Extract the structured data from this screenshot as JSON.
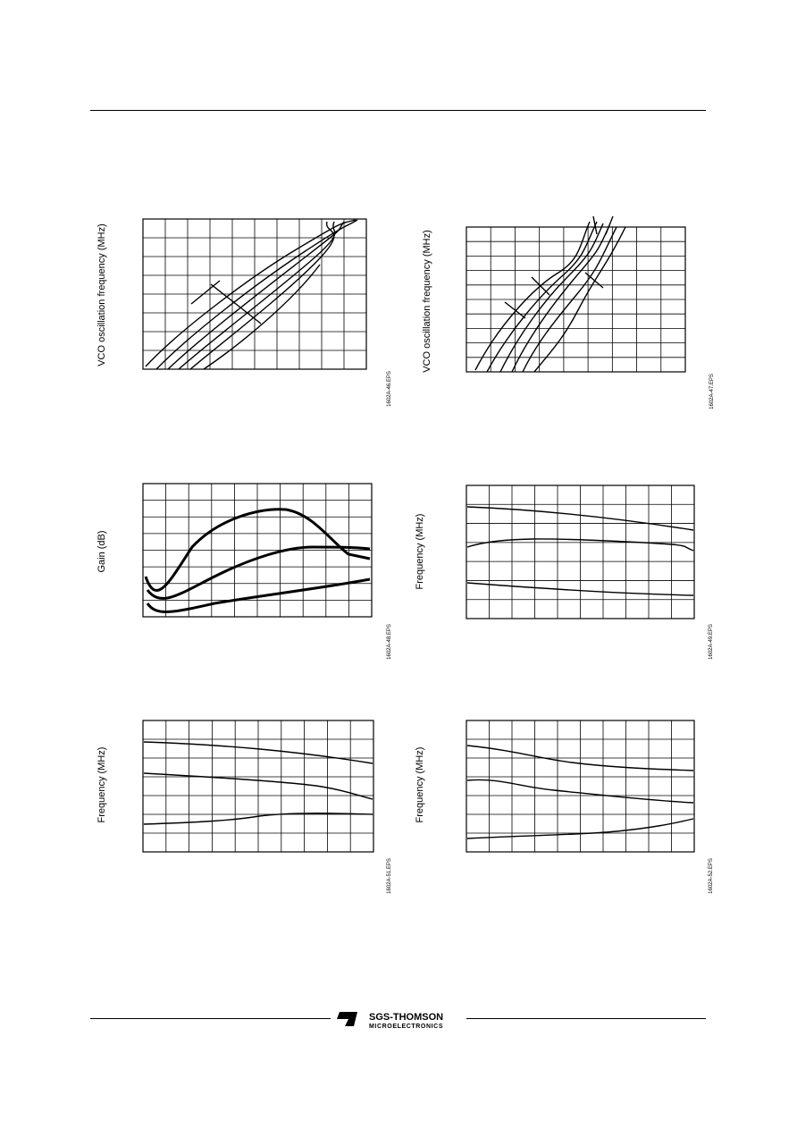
{
  "charts": [
    {
      "y_label": "VCO oscillation frequency (MHz)",
      "code": "1602A-46.EPS"
    },
    {
      "y_label": "VCO oscillation frequency (MHz)",
      "code": "1602A-47.EPS"
    },
    {
      "y_label": "Gain (dB)",
      "code": "1602A-48.EPS"
    },
    {
      "y_label": "Frequency (MHz)",
      "code": "1602A-49.EPS"
    },
    {
      "y_label": "Frequency (MHz)",
      "code": "1602A-51.EPS"
    },
    {
      "y_label": "Frequency (MHz)",
      "code": "1602A-52.EPS"
    }
  ],
  "footer": {
    "brand": "SGS-THOMSON",
    "sub_brand": "MICROELECTRONICS"
  }
}
